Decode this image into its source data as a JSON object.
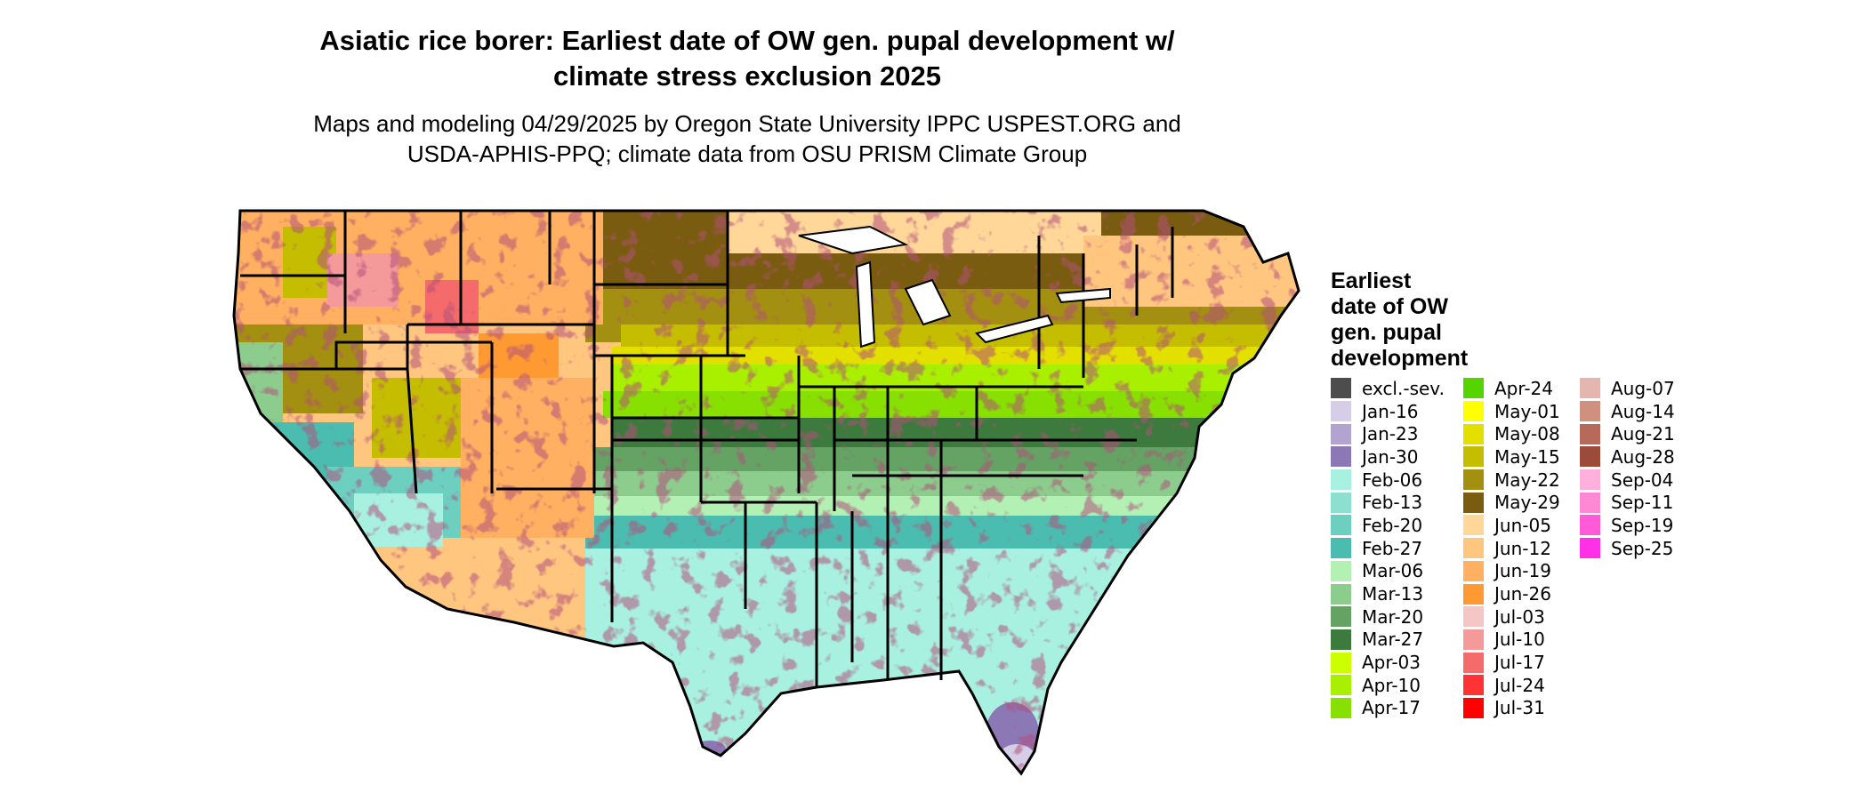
{
  "title_line1": "Asiatic rice borer: Earliest date of OW gen. pupal development w/",
  "title_line2": "climate stress exclusion 2025",
  "subtitle_line1": "Maps and modeling 04/29/2025 by Oregon State University IPPC USPEST.ORG and",
  "subtitle_line2": "USDA-APHIS-PPQ; climate data from OSU PRISM Climate Group",
  "legend": {
    "title_lines": [
      "Earliest",
      "date of OW",
      "gen. pupal",
      "development"
    ],
    "columns": [
      [
        {
          "label": "excl.-sev.",
          "color": "#4d4d4d"
        },
        {
          "label": "Jan-16",
          "color": "#d6cde6"
        },
        {
          "label": "Jan-23",
          "color": "#b2a3d1"
        },
        {
          "label": "Jan-30",
          "color": "#8b78b5"
        },
        {
          "label": "Feb-06",
          "color": "#a8f0df"
        },
        {
          "label": "Feb-13",
          "color": "#8ddfcf"
        },
        {
          "label": "Feb-20",
          "color": "#6ccfc0"
        },
        {
          "label": "Feb-27",
          "color": "#4bbdb0"
        },
        {
          "label": "Mar-06",
          "color": "#b3f0b3"
        },
        {
          "label": "Mar-13",
          "color": "#8ccc8c"
        },
        {
          "label": "Mar-20",
          "color": "#64a364"
        },
        {
          "label": "Mar-27",
          "color": "#3d7a3d"
        },
        {
          "label": "Apr-03",
          "color": "#ccff00"
        },
        {
          "label": "Apr-10",
          "color": "#a9f000"
        },
        {
          "label": "Apr-17",
          "color": "#88e000"
        }
      ],
      [
        {
          "label": "Apr-24",
          "color": "#55d400"
        },
        {
          "label": "May-01",
          "color": "#ffff00"
        },
        {
          "label": "May-08",
          "color": "#e3e000"
        },
        {
          "label": "May-15",
          "color": "#c4bd00"
        },
        {
          "label": "May-22",
          "color": "#a38f10"
        },
        {
          "label": "May-29",
          "color": "#7a5c10"
        },
        {
          "label": "Jun-05",
          "color": "#ffd899"
        },
        {
          "label": "Jun-12",
          "color": "#ffc680"
        },
        {
          "label": "Jun-19",
          "color": "#ffb060"
        },
        {
          "label": "Jun-26",
          "color": "#ff9a33"
        },
        {
          "label": "Jul-03",
          "color": "#f5c6c6"
        },
        {
          "label": "Jul-10",
          "color": "#f59a9a"
        },
        {
          "label": "Jul-17",
          "color": "#f56b6b"
        },
        {
          "label": "Jul-24",
          "color": "#ff3333"
        },
        {
          "label": "Jul-31",
          "color": "#ff0000"
        }
      ],
      [
        {
          "label": "Aug-07",
          "color": "#e5b5b0"
        },
        {
          "label": "Aug-14",
          "color": "#d09080"
        },
        {
          "label": "Aug-21",
          "color": "#b86a5a"
        },
        {
          "label": "Aug-28",
          "color": "#9c4a3a"
        },
        {
          "label": "Sep-04",
          "color": "#ffb0dd"
        },
        {
          "label": "Sep-11",
          "color": "#ff88d5"
        },
        {
          "label": "Sep-19",
          "color": "#ff5ad8"
        },
        {
          "label": "Sep-25",
          "color": "#ff30e8"
        }
      ]
    ]
  }
}
